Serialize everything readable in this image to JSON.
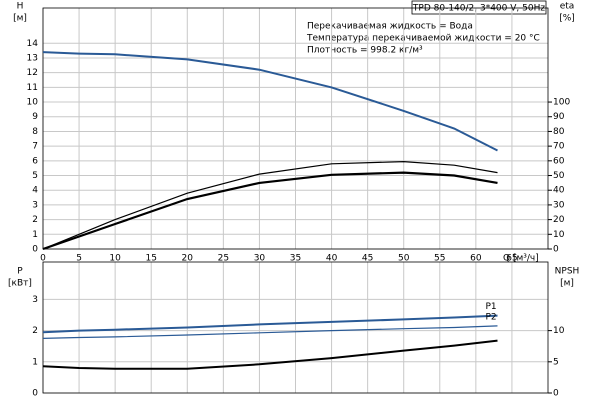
{
  "chart_data": [
    {
      "type": "line",
      "info": "TPD 80-140/2, 3*400 V, 50Hz",
      "annotations": [
        "Перекачиваемая жидкость = Вода",
        "Температура перекачиваемой жидкости = 20 °C",
        "Плотность = 998.2 кг/м³"
      ],
      "y_label": "H",
      "y_unit": "[м]",
      "y2_label": "eta",
      "y2_unit": "[%]",
      "x_label": "Q [м³/ч]",
      "x": [
        0,
        5,
        10,
        20,
        30,
        40,
        50,
        57,
        63
      ],
      "xlim": [
        0,
        70
      ],
      "xticks": [
        0,
        5,
        10,
        15,
        20,
        25,
        30,
        35,
        40,
        45,
        50,
        55,
        60,
        65
      ],
      "ylim": [
        0,
        16.4
      ],
      "yticks": [
        0,
        1,
        2,
        3,
        4,
        5,
        6,
        7,
        8,
        9,
        10,
        11,
        12,
        13,
        14
      ],
      "y2lim": [
        0,
        164
      ],
      "y2ticks": [
        0,
        10,
        20,
        30,
        40,
        50,
        60,
        70,
        80,
        90,
        100
      ],
      "grid": true,
      "series": [
        {
          "color": "#2a5a96",
          "width": 2,
          "values": [
            13.4,
            13.3,
            13.25,
            12.9,
            12.2,
            11.0,
            9.4,
            8.2,
            6.7
          ]
        },
        {
          "color": "#000000",
          "width": 1.2,
          "axis": "y2",
          "values": [
            0,
            10,
            20,
            38,
            51,
            58,
            59.5,
            57,
            52
          ]
        },
        {
          "color": "#000000",
          "width": 2.2,
          "axis": "y2",
          "values": [
            0,
            8.5,
            17,
            34,
            45,
            50.5,
            52,
            50,
            45
          ]
        }
      ]
    },
    {
      "type": "line",
      "y_label": "P",
      "y_unit": "[кВт]",
      "y2_label": "NPSH",
      "y2_unit": "[м]",
      "x": [
        0,
        5,
        10,
        20,
        30,
        40,
        50,
        57,
        63
      ],
      "xlim": [
        0,
        70
      ],
      "ylim": [
        0,
        4.2
      ],
      "yticks": [
        0,
        1,
        2,
        3
      ],
      "y2lim": [
        0,
        21
      ],
      "y2ticks": [
        0,
        5,
        10
      ],
      "grid": true,
      "series": [
        {
          "name": "P1",
          "color": "#2a5a96",
          "width": 2,
          "values": [
            1.95,
            2.0,
            2.03,
            2.1,
            2.2,
            2.28,
            2.36,
            2.42,
            2.48
          ]
        },
        {
          "name": "P2",
          "color": "#2a5a96",
          "width": 1.2,
          "values": [
            1.75,
            1.78,
            1.8,
            1.86,
            1.93,
            2.0,
            2.06,
            2.1,
            2.15
          ]
        },
        {
          "color": "#000000",
          "width": 2,
          "axis": "y2",
          "values": [
            4.3,
            4.0,
            3.9,
            3.9,
            4.6,
            5.6,
            6.8,
            7.6,
            8.4
          ]
        }
      ]
    }
  ]
}
